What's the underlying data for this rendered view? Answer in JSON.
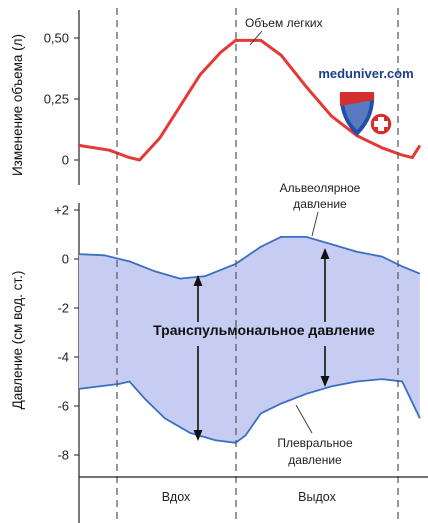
{
  "chart_data": [
    {
      "type": "line",
      "ylabel": "Изменение объема (л)",
      "ylim": [
        0,
        0.5
      ],
      "yticks": [
        "0,50",
        "0,25",
        "0"
      ],
      "series": [
        {
          "name": "Объем легких",
          "color": "#e53935",
          "x": [
            0,
            0.6,
            1.0,
            1.2,
            1.6,
            2.0,
            2.4,
            2.8,
            3.1,
            3.6,
            4.0,
            4.5,
            5.0,
            5.5,
            6.0,
            6.4,
            6.6,
            6.75
          ],
          "y": [
            0.06,
            0.04,
            0.01,
            0.0,
            0.09,
            0.22,
            0.35,
            0.44,
            0.49,
            0.49,
            0.43,
            0.3,
            0.18,
            0.1,
            0.05,
            0.02,
            0.01,
            0.06
          ]
        }
      ]
    },
    {
      "type": "area",
      "ylabel": "Давление (см вод. ст.)",
      "ylim": [
        -8,
        2
      ],
      "yticks": [
        "+2",
        "0",
        "-2",
        "-4",
        "-6",
        "-8"
      ],
      "fill_color": "#c7cdf2",
      "series": [
        {
          "name": "Альвеолярное давление",
          "color": "#3a6fc2",
          "x": [
            0,
            0.5,
            1.0,
            1.5,
            2.0,
            2.5,
            3.1,
            3.6,
            4.0,
            4.5,
            5.0,
            5.5,
            6.0,
            6.4,
            6.75
          ],
          "y": [
            0.2,
            0.15,
            -0.1,
            -0.5,
            -0.8,
            -0.7,
            -0.2,
            0.5,
            0.9,
            0.9,
            0.6,
            0.3,
            0.1,
            -0.3,
            -0.6
          ]
        },
        {
          "name": "Плевральное давление",
          "color": "#3a6fc2",
          "x": [
            0,
            0.4,
            0.8,
            1.0,
            1.3,
            1.7,
            2.2,
            2.7,
            3.1,
            3.3,
            3.6,
            4.0,
            4.5,
            5.0,
            5.5,
            6.0,
            6.4,
            6.75
          ],
          "y": [
            -5.3,
            -5.2,
            -5.1,
            -5.0,
            -5.7,
            -6.5,
            -7.1,
            -7.4,
            -7.5,
            -7.2,
            -6.3,
            -5.9,
            -5.5,
            -5.2,
            -5.0,
            -4.9,
            -5.0,
            -6.5
          ]
        }
      ]
    }
  ],
  "annotations": {
    "volume_label": "Объем легких",
    "alveolar_label_line1": "Альвеолярное",
    "alveolar_label_line2": "давление",
    "transpulmonary_label": "Транспульмональное давление",
    "pleural_label_line1": "Плевральное",
    "pleural_label_line2": "давление"
  },
  "phases": {
    "inhale": "Вдох",
    "exhale": "Выдох"
  },
  "watermark": {
    "text": "meduniver.com"
  },
  "colors": {
    "volume_line": "#e53935",
    "pressure_line": "#3a6fc2",
    "pressure_fill": "#c7cdf2",
    "dashed": "#555555"
  }
}
